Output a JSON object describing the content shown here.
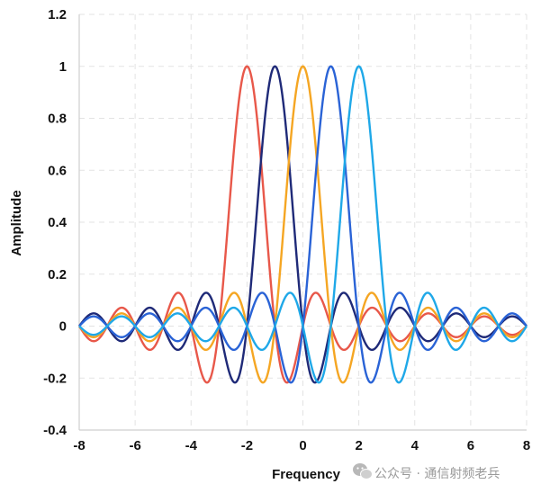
{
  "chart_data": {
    "type": "line",
    "title": "",
    "xlabel": "Frequency",
    "ylabel": "Amplitude",
    "xlim": [
      -8,
      8
    ],
    "ylim": [
      -0.4,
      1.2
    ],
    "grid": true,
    "x_ticks": [
      -8,
      -6,
      -4,
      -2,
      0,
      2,
      4,
      6,
      8
    ],
    "y_ticks": [
      -0.4,
      -0.2,
      0,
      0.2,
      0.4,
      0.6,
      0.8,
      1,
      1.2
    ],
    "x_tick_labels": [
      "-8",
      "-6",
      "-4",
      "-2",
      "0",
      "2",
      "4",
      "6",
      "8"
    ],
    "y_tick_labels": [
      "-0.4",
      "-0.2",
      "0",
      "0.2",
      "0.4",
      "0.6",
      "0.8",
      "1",
      "1.2"
    ],
    "function": "sinc",
    "x_range": [
      -8,
      8
    ],
    "series": [
      {
        "name": "sinc(f + 2)",
        "center": -2,
        "peak": 1,
        "color": "#e8584a"
      },
      {
        "name": "sinc(f + 1)",
        "center": -1,
        "peak": 1,
        "color": "#1f2a78"
      },
      {
        "name": "sinc(f)",
        "center": 0,
        "peak": 1,
        "color": "#f5a623"
      },
      {
        "name": "sinc(f - 1)",
        "center": 1,
        "peak": 1,
        "color": "#2a63d6"
      },
      {
        "name": "sinc(f - 2)",
        "center": 2,
        "peak": 1,
        "color": "#1fa8e8"
      }
    ]
  },
  "watermark": {
    "icon": "wechat-icon",
    "text": "公众号 · 通信射频老兵"
  },
  "colors": {
    "grid": "#e3e3e3",
    "axis": "#cfcfcf",
    "text": "#111111",
    "watermark": "#9a9a9a"
  }
}
